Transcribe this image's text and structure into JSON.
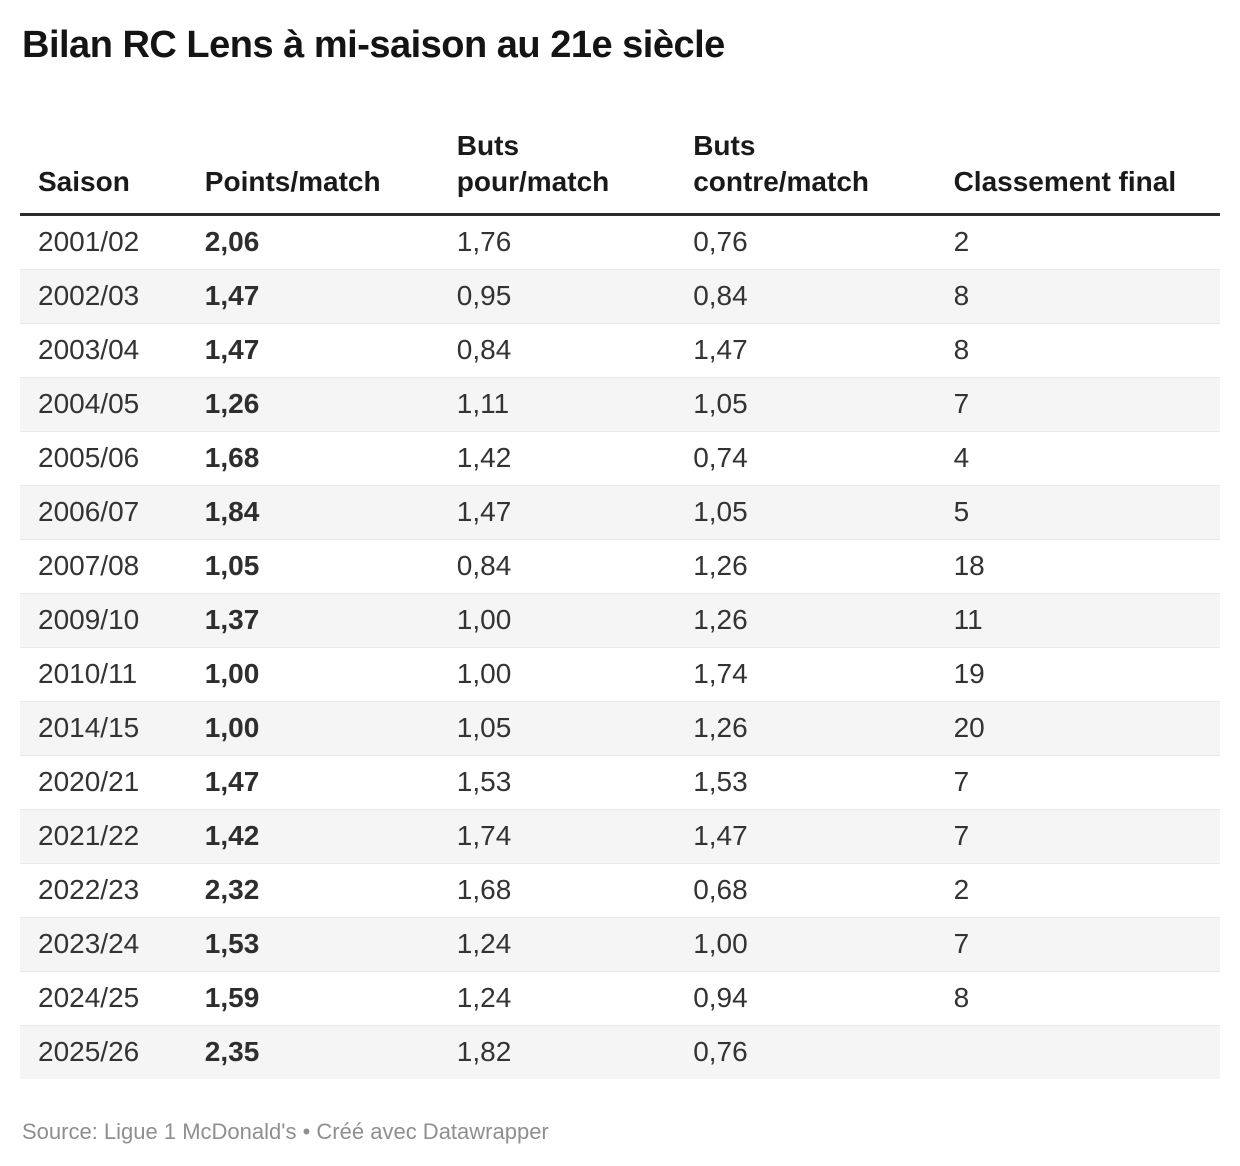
{
  "title": "Bilan RC Lens à mi-saison au 21e siècle",
  "footer": {
    "source": "Source: Ligue 1 McDonald's",
    "bullet": "•",
    "credit": "Créé avec Datawrapper"
  },
  "colors": {
    "title_text": "#141414",
    "body_text": "#333333",
    "header_rule": "#2b2b2b",
    "row_stripe": "#f5f5f5",
    "row_divider": "#e9e9e9",
    "footer_text": "#8f8f8f",
    "background": "#ffffff"
  },
  "chart_data": {
    "type": "table",
    "title": "Bilan RC Lens à mi-saison au 21e siècle",
    "columns": [
      {
        "key": "saison",
        "label": "Saison",
        "bold": false
      },
      {
        "key": "points-match",
        "label": "Points/match",
        "bold": true
      },
      {
        "key": "buts-pour-match",
        "label": "Buts\npour/match",
        "bold": false
      },
      {
        "key": "buts-contre-match",
        "label": "Buts\ncontre/match",
        "bold": false
      },
      {
        "key": "classement-final",
        "label": "Classement final",
        "bold": false
      }
    ],
    "rows": [
      [
        "2001/02",
        "2,06",
        "1,76",
        "0,76",
        "2"
      ],
      [
        "2002/03",
        "1,47",
        "0,95",
        "0,84",
        "8"
      ],
      [
        "2003/04",
        "1,47",
        "0,84",
        "1,47",
        "8"
      ],
      [
        "2004/05",
        "1,26",
        "1,11",
        "1,05",
        "7"
      ],
      [
        "2005/06",
        "1,68",
        "1,42",
        "0,74",
        "4"
      ],
      [
        "2006/07",
        "1,84",
        "1,47",
        "1,05",
        "5"
      ],
      [
        "2007/08",
        "1,05",
        "0,84",
        "1,26",
        "18"
      ],
      [
        "2009/10",
        "1,37",
        "1,00",
        "1,26",
        "11"
      ],
      [
        "2010/11",
        "1,00",
        "1,00",
        "1,74",
        "19"
      ],
      [
        "2014/15",
        "1,00",
        "1,05",
        "1,26",
        "20"
      ],
      [
        "2020/21",
        "1,47",
        "1,53",
        "1,53",
        "7"
      ],
      [
        "2021/22",
        "1,42",
        "1,74",
        "1,47",
        "7"
      ],
      [
        "2022/23",
        "2,32",
        "1,68",
        "0,68",
        "2"
      ],
      [
        "2023/24",
        "1,53",
        "1,24",
        "1,00",
        "7"
      ],
      [
        "2024/25",
        "1,59",
        "1,24",
        "0,94",
        "8"
      ],
      [
        "2025/26",
        "2,35",
        "1,82",
        "0,76",
        ""
      ]
    ],
    "layout": {
      "striped_rows": true,
      "grid": "horizontal-hairlines",
      "column_widths_pct": [
        13.9,
        21.0,
        19.7,
        21.7,
        23.7
      ],
      "header_align": "left",
      "cell_align": "left"
    }
  }
}
